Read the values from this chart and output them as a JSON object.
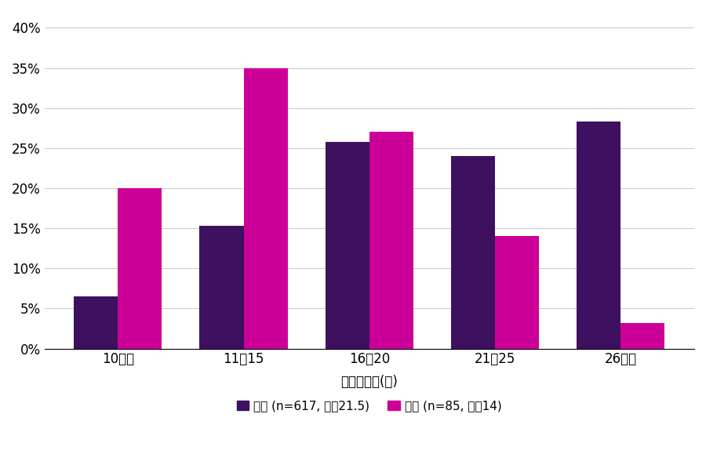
{
  "categories": [
    "10以下",
    "11〜15",
    "16〜20",
    "21〜25",
    "26以上"
  ],
  "japan_values": [
    0.065,
    0.153,
    0.258,
    0.24,
    0.283
  ],
  "us_values": [
    0.2,
    0.35,
    0.27,
    0.14,
    0.032
  ],
  "japan_color": "#3D1060",
  "us_color": "#CC0099",
  "japan_label_normal": "日本 (n=617, 平均",
  "japan_label_bold": "21.5",
  "japan_label_close": ")",
  "us_label_normal": "米国 (n=85, 平均",
  "us_label_bold": "14",
  "us_label_close": ")",
  "japan_label_full": "日本 (n=617, 平均21.5)",
  "us_label_full": "米国 (n=85, 平均14)",
  "xlabel": "運用商品数(本)",
  "ylim": [
    0,
    0.42
  ],
  "yticks": [
    0.0,
    0.05,
    0.1,
    0.15,
    0.2,
    0.25,
    0.3,
    0.35,
    0.4
  ],
  "ytick_labels": [
    "0%",
    "5%",
    "10%",
    "15%",
    "20%",
    "25%",
    "30%",
    "35%",
    "40%"
  ],
  "bar_width": 0.35,
  "background_color": "#ffffff",
  "grid_color": "#cccccc",
  "axis_fontsize": 12,
  "legend_fontsize": 11
}
